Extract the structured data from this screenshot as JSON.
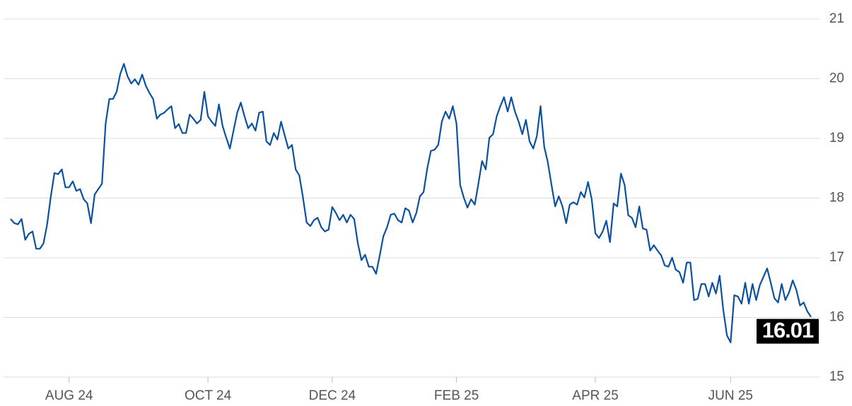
{
  "chart_data": {
    "type": "line",
    "color": "#0b51a0",
    "grid": true,
    "values": [
      17.65,
      17.58,
      17.56,
      17.65,
      17.3,
      17.4,
      17.44,
      17.15,
      17.15,
      17.24,
      17.56,
      18.03,
      18.42,
      18.4,
      18.48,
      18.18,
      18.18,
      18.28,
      18.12,
      18.15,
      17.98,
      17.91,
      17.58,
      18.06,
      18.15,
      18.24,
      19.25,
      19.66,
      19.66,
      19.78,
      20.08,
      20.25,
      20.04,
      19.92,
      19.99,
      19.9,
      20.07,
      19.88,
      19.76,
      19.66,
      19.33,
      19.4,
      19.43,
      19.49,
      19.54,
      19.17,
      19.24,
      19.09,
      19.09,
      19.4,
      19.33,
      19.25,
      19.31,
      19.78,
      19.37,
      19.28,
      19.21,
      19.57,
      19.21,
      19.01,
      18.83,
      19.13,
      19.43,
      19.6,
      19.37,
      19.17,
      19.25,
      19.13,
      19.43,
      19.45,
      18.95,
      18.89,
      19.09,
      18.98,
      19.28,
      19.05,
      18.83,
      18.89,
      18.48,
      18.38,
      18.01,
      17.59,
      17.53,
      17.63,
      17.67,
      17.51,
      17.44,
      17.47,
      17.85,
      17.75,
      17.63,
      17.72,
      17.59,
      17.72,
      17.65,
      17.24,
      16.96,
      17.05,
      16.85,
      16.85,
      16.73,
      17.04,
      17.36,
      17.51,
      17.72,
      17.74,
      17.63,
      17.59,
      17.83,
      17.79,
      17.59,
      17.75,
      18.03,
      18.1,
      18.5,
      18.79,
      18.81,
      18.89,
      19.28,
      19.45,
      19.33,
      19.54,
      19.25,
      18.22,
      18.01,
      17.84,
      17.98,
      17.89,
      18.24,
      18.62,
      18.48,
      19.01,
      19.07,
      19.37,
      19.54,
      19.69,
      19.45,
      19.69,
      19.45,
      19.28,
      19.07,
      19.31,
      18.95,
      18.83,
      19.04,
      19.54,
      18.86,
      18.6,
      18.22,
      17.86,
      18.03,
      17.86,
      17.58,
      17.89,
      17.93,
      17.89,
      18.1,
      18.01,
      18.27,
      17.98,
      17.41,
      17.33,
      17.44,
      17.62,
      17.26,
      17.91,
      17.86,
      18.41,
      18.22,
      17.71,
      17.67,
      17.51,
      17.86,
      17.49,
      17.47,
      17.12,
      17.21,
      17.12,
      17.04,
      16.87,
      16.85,
      17.0,
      16.8,
      16.76,
      16.58,
      16.92,
      16.92,
      16.29,
      16.31,
      16.56,
      16.56,
      16.35,
      16.58,
      16.4,
      16.7,
      16.13,
      15.7,
      15.58,
      16.37,
      16.35,
      16.23,
      16.58,
      16.23,
      16.56,
      16.29,
      16.54,
      16.68,
      16.82,
      16.58,
      16.32,
      16.25,
      16.56,
      16.29,
      16.42,
      16.62,
      16.46,
      16.2,
      16.25,
      16.1,
      16.01
    ],
    "xlim": [
      0,
      219
    ],
    "xticks": [
      {
        "value": 16,
        "label": "AUG 24"
      },
      {
        "value": 54,
        "label": "OCT 24"
      },
      {
        "value": 88,
        "label": "DEC 24"
      },
      {
        "value": 122,
        "label": "FEB 25"
      },
      {
        "value": 160,
        "label": "APR 25"
      },
      {
        "value": 197,
        "label": "JUN 25"
      }
    ],
    "ylim": [
      15,
      21
    ],
    "yticks": [
      15,
      16,
      17,
      18,
      19,
      20,
      21
    ]
  }
}
